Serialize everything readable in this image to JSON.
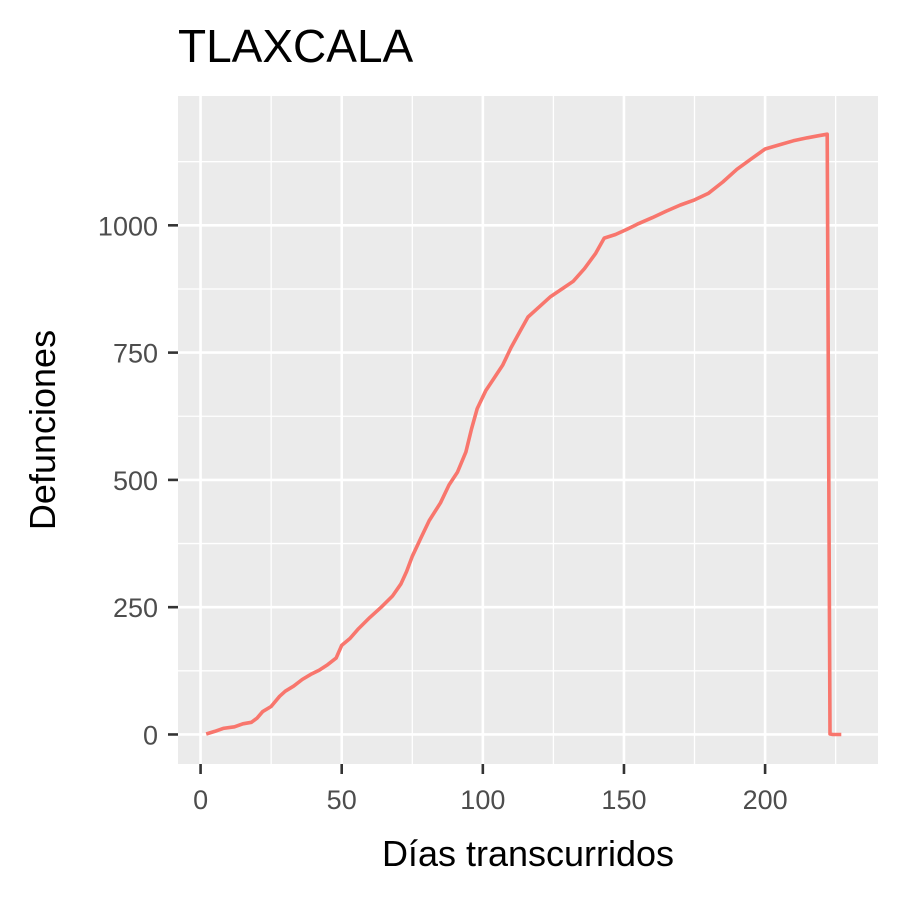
{
  "chart_data": {
    "type": "line",
    "title": "TLAXCALA",
    "xlabel": "Días transcurridos",
    "ylabel": "Defunciones",
    "xlim": [
      -8,
      240
    ],
    "ylim": [
      -58,
      1254
    ],
    "x_ticks": [
      0,
      50,
      100,
      150,
      200
    ],
    "y_ticks": [
      0,
      250,
      500,
      750,
      1000
    ],
    "grid": true,
    "panel_background": "#ebebeb",
    "series": [
      {
        "color": "#f8766d",
        "points": [
          [
            2,
            1
          ],
          [
            5,
            6
          ],
          [
            8,
            12
          ],
          [
            12,
            15
          ],
          [
            15,
            21
          ],
          [
            18,
            24
          ],
          [
            20,
            32
          ],
          [
            22,
            45
          ],
          [
            25,
            55
          ],
          [
            28,
            75
          ],
          [
            30,
            85
          ],
          [
            33,
            95
          ],
          [
            36,
            108
          ],
          [
            39,
            118
          ],
          [
            42,
            126
          ],
          [
            45,
            137
          ],
          [
            48,
            150
          ],
          [
            50,
            175
          ],
          [
            53,
            189
          ],
          [
            56,
            208
          ],
          [
            60,
            230
          ],
          [
            64,
            250
          ],
          [
            68,
            272
          ],
          [
            71,
            296
          ],
          [
            73,
            320
          ],
          [
            75,
            350
          ],
          [
            78,
            385
          ],
          [
            81,
            420
          ],
          [
            85,
            455
          ],
          [
            88,
            490
          ],
          [
            91,
            515
          ],
          [
            94,
            555
          ],
          [
            96,
            600
          ],
          [
            98,
            640
          ],
          [
            101,
            675
          ],
          [
            104,
            700
          ],
          [
            107,
            725
          ],
          [
            110,
            760
          ],
          [
            113,
            790
          ],
          [
            116,
            820
          ],
          [
            120,
            840
          ],
          [
            124,
            860
          ],
          [
            128,
            875
          ],
          [
            132,
            890
          ],
          [
            136,
            915
          ],
          [
            140,
            945
          ],
          [
            143,
            975
          ],
          [
            147,
            982
          ],
          [
            151,
            992
          ],
          [
            155,
            1003
          ],
          [
            160,
            1015
          ],
          [
            165,
            1028
          ],
          [
            170,
            1040
          ],
          [
            175,
            1050
          ],
          [
            180,
            1063
          ],
          [
            185,
            1085
          ],
          [
            190,
            1110
          ],
          [
            195,
            1130
          ],
          [
            200,
            1150
          ],
          [
            205,
            1158
          ],
          [
            210,
            1166
          ],
          [
            215,
            1172
          ],
          [
            219,
            1176
          ],
          [
            221,
            1178
          ],
          [
            222,
            1179
          ],
          [
            223,
            1
          ],
          [
            224,
            0
          ],
          [
            227,
            0
          ]
        ]
      }
    ]
  }
}
